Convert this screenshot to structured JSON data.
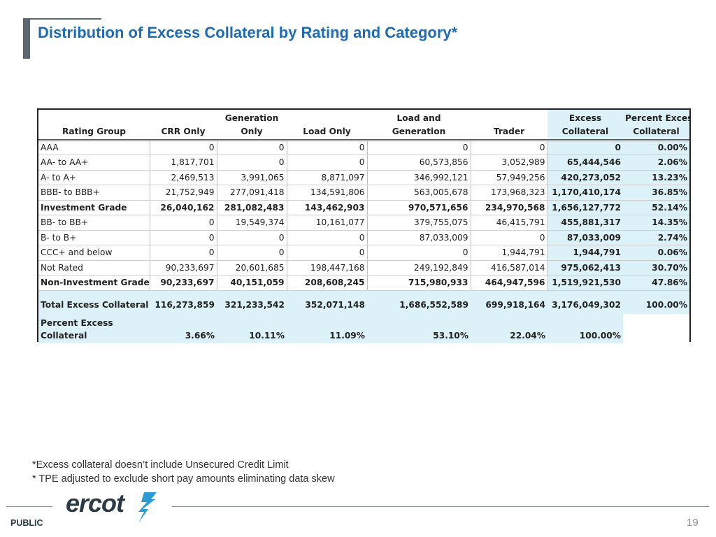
{
  "title": "Distribution of Excess Collateral by Rating and Category*",
  "colors": {
    "title_blue": "#1e6ab4",
    "highlight": "#ddf1f8",
    "slate": "#5b6770"
  },
  "table": {
    "headers_top": [
      "",
      "",
      "Generation",
      "",
      "Load and",
      "",
      "Excess",
      "Percent Excess"
    ],
    "headers_bottom": [
      "Rating Group",
      "CRR Only",
      "Only",
      "Load Only",
      "Generation",
      "Trader",
      "Collateral",
      "Collateral"
    ],
    "rows": [
      {
        "cells": [
          "AAA",
          "0",
          "0",
          "0",
          "0",
          "0",
          "0",
          "0.00%"
        ],
        "bold": false
      },
      {
        "cells": [
          "AA- to AA+",
          "1,817,701",
          "0",
          "0",
          "60,573,856",
          "3,052,989",
          "65,444,546",
          "2.06%"
        ],
        "bold": false
      },
      {
        "cells": [
          "A- to A+",
          "2,469,513",
          "3,991,065",
          "8,871,097",
          "346,992,121",
          "57,949,256",
          "420,273,052",
          "13.23%"
        ],
        "bold": false
      },
      {
        "cells": [
          "BBB- to BBB+",
          "21,752,949",
          "277,091,418",
          "134,591,806",
          "563,005,678",
          "173,968,323",
          "1,170,410,174",
          "36.85%"
        ],
        "bold": false
      },
      {
        "cells": [
          "Investment Grade",
          "26,040,162",
          "281,082,483",
          "143,462,903",
          "970,571,656",
          "234,970,568",
          "1,656,127,772",
          "52.14%"
        ],
        "bold": true
      },
      {
        "cells": [
          "BB- to BB+",
          "0",
          "19,549,374",
          "10,161,077",
          "379,755,075",
          "46,415,791",
          "455,881,317",
          "14.35%"
        ],
        "bold": false
      },
      {
        "cells": [
          "B- to B+",
          "0",
          "0",
          "0",
          "87,033,009",
          "0",
          "87,033,009",
          "2.74%"
        ],
        "bold": false
      },
      {
        "cells": [
          "CCC+ and below",
          "0",
          "0",
          "0",
          "0",
          "1,944,791",
          "1,944,791",
          "0.06%"
        ],
        "bold": false
      },
      {
        "cells": [
          "Not Rated",
          "90,233,697",
          "20,601,685",
          "198,447,168",
          "249,192,849",
          "416,587,014",
          "975,062,413",
          "30.70%"
        ],
        "bold": false
      },
      {
        "cells": [
          "Non-Investment Grade",
          "90,233,697",
          "40,151,059",
          "208,608,245",
          "715,980,933",
          "464,947,596",
          "1,519,921,530",
          "47.86%"
        ],
        "bold": true
      }
    ],
    "total": [
      "Total Excess Collateral",
      "116,273,859",
      "321,233,542",
      "352,071,148",
      "1,686,552,589",
      "699,918,164",
      "3,176,049,302",
      "100.00%"
    ],
    "percent_label_line1": "Percent Excess",
    "percent_label_line2": "Collateral",
    "percent_values": [
      "3.66%",
      "10.11%",
      "11.09%",
      "53.10%",
      "22.04%",
      "100.00%"
    ]
  },
  "footnotes": [
    "*Excess collateral doesn’t include Unsecured Credit Limit",
    "* TPE adjusted to exclude short pay amounts eliminating data skew"
  ],
  "footer": {
    "logo_text": "ercot",
    "classification": "PUBLIC",
    "page_number": "19"
  }
}
